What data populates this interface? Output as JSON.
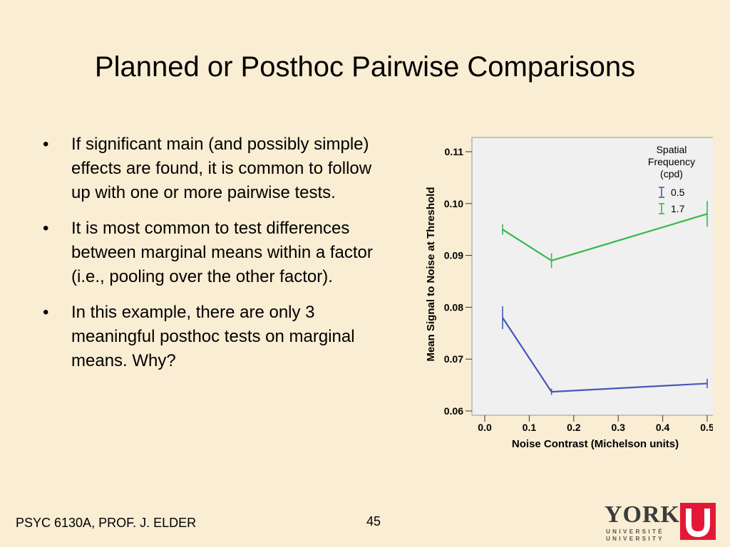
{
  "title": "Planned or Posthoc Pairwise Comparisons",
  "bullets": [
    "If significant main (and possibly simple) effects are found, it is common to follow up with one or more pairwise tests.",
    "It is most common to test differences between marginal means within a factor (i.e., pooling over the other factor).",
    "In this example, there are only 3 meaningful posthoc tests on marginal means.  Why?"
  ],
  "footer": {
    "left": "PSYC 6130A, PROF. J. ELDER",
    "page": "45"
  },
  "logo": {
    "word": "YORK",
    "sub1": "UNIVERSITÉ",
    "sub2": "UNIVERSITY"
  },
  "chart_data": {
    "type": "line",
    "xlabel": "Noise Contrast (Michelson units)",
    "ylabel": "Mean Signal to Noise at Threshold",
    "xlim": [
      0.0,
      0.5
    ],
    "ylim": [
      0.06,
      0.11
    ],
    "xticks": [
      "0.0",
      "0.1",
      "0.2",
      "0.3",
      "0.4",
      "0.5"
    ],
    "yticks": [
      "0.06",
      "0.07",
      "0.08",
      "0.09",
      "0.10",
      "0.11"
    ],
    "legend": {
      "title_lines": [
        "Spatial",
        "Frequency",
        "(cpd)"
      ],
      "position": "top-right"
    },
    "series": [
      {
        "name": "0.5",
        "color": "#4458b8",
        "x": [
          0.04,
          0.15,
          0.5
        ],
        "y": [
          0.078,
          0.0637,
          0.0653
        ],
        "err": [
          0.0022,
          0.0006,
          0.0009
        ]
      },
      {
        "name": "1.7",
        "color": "#35b94a",
        "x": [
          0.04,
          0.15,
          0.5
        ],
        "y": [
          0.095,
          0.089,
          0.098
        ],
        "err": [
          0.001,
          0.0014,
          0.0025
        ]
      }
    ],
    "plot_bg": "#f0f0f0"
  }
}
